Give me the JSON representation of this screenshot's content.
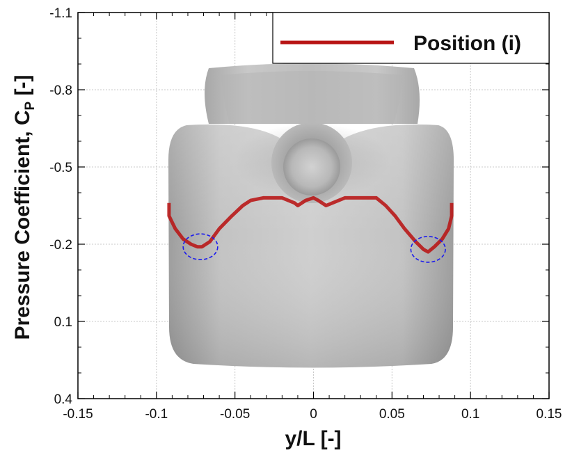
{
  "chart_data": {
    "type": "line",
    "title": "",
    "xlabel": "y/L [-]",
    "ylabel": "Pressure Coefficient, C",
    "ylabel_subscript": "P",
    "ylabel_suffix": " [-]",
    "xlim": [
      -0.15,
      0.15
    ],
    "ylim": [
      0.4,
      -1.1
    ],
    "y_reversed": true,
    "x_ticks": [
      -0.15,
      -0.1,
      -0.05,
      0,
      0.05,
      0.1,
      0.15
    ],
    "x_tick_labels": [
      "-0.15",
      "-0.1",
      "-0.05",
      "0",
      "0.05",
      "0.1",
      "0.15"
    ],
    "y_ticks": [
      -1.1,
      -0.8,
      -0.5,
      -0.2,
      0.1,
      0.4
    ],
    "y_tick_labels": [
      "-1.1",
      "-0.8",
      "-0.5",
      "-0.2",
      "0.1",
      "0.4"
    ],
    "grid": true,
    "legend_position": "top-right",
    "background_image": "ship-hull-render",
    "series": [
      {
        "name": "Position (i)",
        "color": "#b81414",
        "x": [
          -0.092,
          -0.092,
          -0.088,
          -0.083,
          -0.078,
          -0.074,
          -0.071,
          -0.066,
          -0.06,
          -0.052,
          -0.045,
          -0.04,
          -0.032,
          -0.02,
          -0.012,
          -0.01,
          -0.005,
          0,
          0.003,
          0.008,
          0.012,
          0.02,
          0.03,
          0.04,
          0.046,
          0.052,
          0.058,
          0.065,
          0.07,
          0.073,
          0.077,
          0.082,
          0.086,
          0.088,
          0.088
        ],
        "y": [
          -0.36,
          -0.31,
          -0.26,
          -0.22,
          -0.2,
          -0.19,
          -0.19,
          -0.21,
          -0.26,
          -0.31,
          -0.35,
          -0.37,
          -0.38,
          -0.38,
          -0.36,
          -0.35,
          -0.37,
          -0.38,
          -0.37,
          -0.35,
          -0.36,
          -0.38,
          -0.38,
          -0.38,
          -0.35,
          -0.31,
          -0.26,
          -0.21,
          -0.18,
          -0.17,
          -0.19,
          -0.22,
          -0.26,
          -0.31,
          -0.36
        ]
      }
    ],
    "annotations": [
      {
        "type": "dashed-circle",
        "color": "#1a1aee",
        "x": -0.072,
        "y": -0.19,
        "rx": 0.011,
        "ry": 0.05
      },
      {
        "type": "dashed-circle",
        "color": "#1a1aee",
        "x": 0.073,
        "y": -0.18,
        "rx": 0.011,
        "ry": 0.05
      }
    ]
  }
}
